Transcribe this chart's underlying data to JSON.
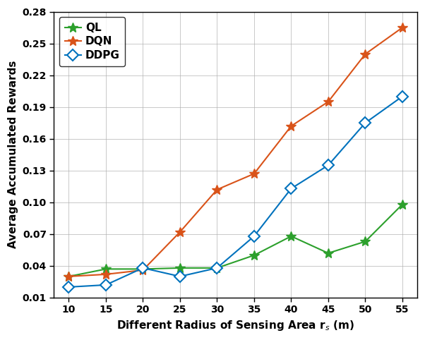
{
  "x": [
    10,
    15,
    20,
    25,
    30,
    35,
    40,
    45,
    50,
    55
  ],
  "QL": [
    0.03,
    0.037,
    0.037,
    0.038,
    0.038,
    0.05,
    0.068,
    0.052,
    0.063,
    0.098
  ],
  "DQN": [
    0.03,
    0.032,
    0.036,
    0.072,
    0.112,
    0.127,
    0.172,
    0.195,
    0.24,
    0.265
  ],
  "DDPG": [
    0.02,
    0.022,
    0.038,
    0.03,
    0.038,
    0.068,
    0.113,
    0.135,
    0.175,
    0.2
  ],
  "QL_color": "#2ca02c",
  "DQN_color": "#d95319",
  "DDPG_color": "#0072bd",
  "xlabel": "Different Radius of Sensing Area r$_s$ (m)",
  "ylabel": "Average Accumulated Rewards",
  "ylim": [
    0.01,
    0.28
  ],
  "xlim": [
    8,
    57
  ],
  "yticks": [
    0.01,
    0.04,
    0.07,
    0.1,
    0.13,
    0.16,
    0.19,
    0.22,
    0.25,
    0.28
  ],
  "xticks": [
    10,
    15,
    20,
    25,
    30,
    35,
    40,
    45,
    50,
    55
  ],
  "legend_labels": [
    "QL",
    "DQN",
    "DDPG"
  ],
  "bg_color": "#ffffff",
  "grid_color": "#b0b0b0"
}
